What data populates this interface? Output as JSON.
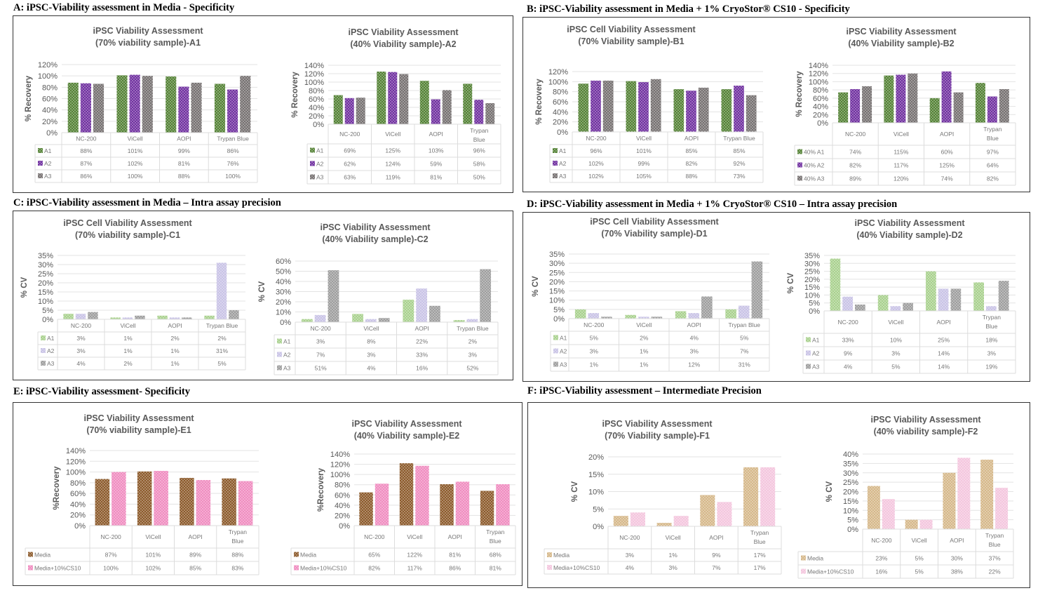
{
  "panels": [
    {
      "id": "A",
      "title": "A: iPSC-Viability  assessment in Media  - Specificity"
    },
    {
      "id": "B",
      "title": "B: iPSC-Viability  assessment in Media  + 1% CryoStor®  CS10 - Specificity"
    },
    {
      "id": "C",
      "title": "C: iPSC-Viability  assessment in Media  – Intra  assay precision"
    },
    {
      "id": "D",
      "title": "D: iPSC-Viability  assessment in Media  + 1% CryoStor®  CS10 – Intra  assay precision"
    },
    {
      "id": "E",
      "title": "E:  iPSC-Viability  assessment- Specificity"
    },
    {
      "id": "F",
      "title": "F: iPSC-Viability  assessment – Intermediate  Precision"
    }
  ],
  "colors": {
    "green": "#548235",
    "purple": "#7030a0",
    "gray": "#767171",
    "lightgreen": "#a9d18e",
    "lavender": "#c9c3e6",
    "midgray": "#9e9e9e",
    "brown": "#8c5a2b",
    "pink": "#f08cc0",
    "tan": "#d6b88a",
    "lightpink": "#f4c6de"
  },
  "chart_data": [
    {
      "id": "A1",
      "type": "bar",
      "title": [
        "iPSC Viability Assessment",
        "(70% viability sample)-A1"
      ],
      "ylabel": "% Recovery",
      "ylim": [
        0,
        120
      ],
      "ytick_step": 20,
      "categories": [
        "NC-200",
        "ViCell",
        "AOPI",
        "Trypan Blue"
      ],
      "series": [
        {
          "name": "A1",
          "color": "green",
          "values": [
            88,
            101,
            99,
            86
          ]
        },
        {
          "name": "A2",
          "color": "purple",
          "values": [
            87,
            102,
            81,
            76
          ]
        },
        {
          "name": "A3",
          "color": "gray",
          "values": [
            86,
            100,
            88,
            100
          ]
        }
      ],
      "legend": "table-bottom",
      "grid": true
    },
    {
      "id": "A2",
      "type": "bar",
      "title": [
        "iPSC Viability Assessment",
        "(40% Viability sample)-A2"
      ],
      "ylabel": "% Recovery",
      "ylim": [
        0,
        140
      ],
      "ytick_step": 20,
      "categories": [
        "NC-200",
        "ViCell",
        "AOPI",
        "Trypan Blue"
      ],
      "series": [
        {
          "name": "A1",
          "color": "green",
          "values": [
            69,
            125,
            103,
            96
          ]
        },
        {
          "name": "A2",
          "color": "purple",
          "values": [
            62,
            124,
            59,
            58
          ]
        },
        {
          "name": "A3",
          "color": "gray",
          "values": [
            63,
            119,
            81,
            50
          ]
        }
      ],
      "legend": "table-bottom",
      "grid": true
    },
    {
      "id": "B1",
      "type": "bar",
      "title": [
        "iPSC Cell Viability Assessment",
        "(70% Viability sample)-B1"
      ],
      "ylabel": "% Recovery",
      "ylim": [
        0,
        120
      ],
      "ytick_step": 20,
      "categories": [
        "NC-200",
        "ViCell",
        "AOPI",
        "Trypan Blue"
      ],
      "series": [
        {
          "name": "A1",
          "color": "green",
          "values": [
            96,
            101,
            85,
            85
          ]
        },
        {
          "name": "A2",
          "color": "purple",
          "values": [
            102,
            99,
            82,
            92
          ]
        },
        {
          "name": "A3",
          "color": "gray",
          "values": [
            102,
            105,
            88,
            73
          ]
        }
      ],
      "legend": "table-bottom",
      "grid": true
    },
    {
      "id": "B2",
      "type": "bar",
      "title": [
        "iPSC Viability Assessment",
        "(40% Viability sample)-B2"
      ],
      "ylabel": "% Recovery",
      "ylim": [
        0,
        140
      ],
      "ytick_step": 20,
      "categories": [
        "NC-200",
        "ViCell",
        "AOPI",
        "Trypan Blue"
      ],
      "series": [
        {
          "name": "40% A1",
          "color": "green",
          "values": [
            74,
            115,
            60,
            97
          ]
        },
        {
          "name": "40% A2",
          "color": "purple",
          "values": [
            82,
            117,
            125,
            64
          ]
        },
        {
          "name": "40% A3",
          "color": "gray",
          "values": [
            89,
            120,
            74,
            82
          ]
        }
      ],
      "legend": "table-bottom",
      "grid": true
    },
    {
      "id": "C1",
      "type": "bar",
      "title": [
        "iPSC Cell Viability Assessment",
        "(70% viability sample)-C1"
      ],
      "ylabel": "% CV",
      "ylim": [
        0,
        35
      ],
      "ytick_step": 5,
      "categories": [
        "NC-200",
        "ViCell",
        "AOPI",
        "Trypan Blue"
      ],
      "series": [
        {
          "name": "A1",
          "color": "lightgreen",
          "values": [
            3,
            1,
            2,
            2
          ]
        },
        {
          "name": "A2",
          "color": "lavender",
          "values": [
            3,
            1,
            1,
            31
          ]
        },
        {
          "name": "A3",
          "color": "midgray",
          "values": [
            4,
            2,
            1,
            5
          ]
        }
      ],
      "legend": "table-bottom",
      "grid": true
    },
    {
      "id": "C2",
      "type": "bar",
      "title": [
        "iPSC Viability Assessment",
        "(40% Viability sample)-C2"
      ],
      "ylabel": "% CV",
      "ylim": [
        0,
        60
      ],
      "ytick_step": 10,
      "categories": [
        "NC-200",
        "ViCell",
        "AOPI",
        "Trypan Blue"
      ],
      "series": [
        {
          "name": "A1",
          "color": "lightgreen",
          "values": [
            3,
            8,
            22,
            2
          ]
        },
        {
          "name": "A2",
          "color": "lavender",
          "values": [
            7,
            3,
            33,
            3
          ]
        },
        {
          "name": "A3",
          "color": "midgray",
          "values": [
            51,
            4,
            16,
            52
          ]
        }
      ],
      "legend": "table-bottom",
      "grid": true
    },
    {
      "id": "D1",
      "type": "bar",
      "title": [
        "iPSC Cell Viability Assessment",
        "(70% Viability sample)-D1"
      ],
      "ylabel": "% CV",
      "ylim": [
        0,
        35
      ],
      "ytick_step": 5,
      "categories": [
        "NC-200",
        "ViCell",
        "AOPI",
        "Trypan Blue"
      ],
      "series": [
        {
          "name": "A1",
          "color": "lightgreen",
          "values": [
            5,
            2,
            4,
            5
          ]
        },
        {
          "name": "A2",
          "color": "lavender",
          "values": [
            3,
            1,
            3,
            7
          ]
        },
        {
          "name": "A3",
          "color": "midgray",
          "values": [
            1,
            1,
            12,
            31
          ]
        }
      ],
      "legend": "table-bottom",
      "grid": true
    },
    {
      "id": "D2",
      "type": "bar",
      "title": [
        "iPSC Viability Assessment",
        "(40% Viability sample)-D2"
      ],
      "ylabel": "% CV",
      "ylim": [
        0,
        35
      ],
      "ytick_step": 5,
      "categories": [
        "NC-200",
        "ViCell",
        "AOPI",
        "Trypan Blue"
      ],
      "series": [
        {
          "name": "A1",
          "color": "lightgreen",
          "values": [
            33,
            10,
            25,
            18
          ]
        },
        {
          "name": "A2",
          "color": "lavender",
          "values": [
            9,
            3,
            14,
            3
          ]
        },
        {
          "name": "A3",
          "color": "midgray",
          "values": [
            4,
            5,
            14,
            19
          ]
        }
      ],
      "legend": "table-bottom",
      "grid": true
    },
    {
      "id": "E1",
      "type": "bar",
      "title": [
        "iPSC Viability Assessment",
        "(70% viability sample)-E1"
      ],
      "ylabel": "%Recovery",
      "ylim": [
        0,
        140
      ],
      "ytick_step": 20,
      "categories": [
        "NC-200",
        "ViCell",
        "AOPI",
        "Trypan Blue"
      ],
      "series": [
        {
          "name": "Media",
          "color": "brown",
          "values": [
            87,
            101,
            89,
            88
          ]
        },
        {
          "name": "Media+10%CS10",
          "color": "pink",
          "values": [
            100,
            102,
            85,
            83
          ]
        }
      ],
      "legend": "table-bottom",
      "grid": true
    },
    {
      "id": "E2",
      "type": "bar",
      "title": [
        "iPSC Viability Assessment",
        "(40% Viability sample)-E2"
      ],
      "ylabel": "%Recovery",
      "ylim": [
        0,
        140
      ],
      "ytick_step": 20,
      "categories": [
        "NC-200",
        "ViCell",
        "AOPI",
        "Trypan Blue"
      ],
      "series": [
        {
          "name": "Media",
          "color": "brown",
          "values": [
            65,
            122,
            81,
            68
          ]
        },
        {
          "name": "Media+10%CS10",
          "color": "pink",
          "values": [
            82,
            117,
            86,
            81
          ]
        }
      ],
      "legend": "table-bottom",
      "grid": true
    },
    {
      "id": "F1",
      "type": "bar",
      "title": [
        "iPSC Viability Assessment",
        "(70% Viability sample)-F1"
      ],
      "ylabel": "% CV",
      "ylim": [
        0,
        20
      ],
      "ytick_step": 5,
      "categories": [
        "NC-200",
        "ViCell",
        "AOPI",
        "Trypan Blue"
      ],
      "series": [
        {
          "name": "Media",
          "color": "tan",
          "values": [
            3,
            1,
            9,
            17
          ]
        },
        {
          "name": "Media+10%CS10",
          "color": "lightpink",
          "values": [
            4,
            3,
            7,
            17
          ]
        }
      ],
      "legend": "table-bottom",
      "grid": true
    },
    {
      "id": "F2",
      "type": "bar",
      "title": [
        "iPSC Viability Assessment",
        "(40% viability sample)-F2"
      ],
      "ylabel": "% CV",
      "ylim": [
        0,
        40
      ],
      "ytick_step": 5,
      "categories": [
        "NC-200",
        "ViCell",
        "AOPI",
        "Trypan Blue"
      ],
      "series": [
        {
          "name": "Media",
          "color": "tan",
          "values": [
            23,
            5,
            30,
            37
          ]
        },
        {
          "name": "Media+10%CS10",
          "color": "lightpink",
          "values": [
            16,
            5,
            38,
            22
          ]
        }
      ],
      "legend": "table-bottom",
      "grid": true
    }
  ]
}
